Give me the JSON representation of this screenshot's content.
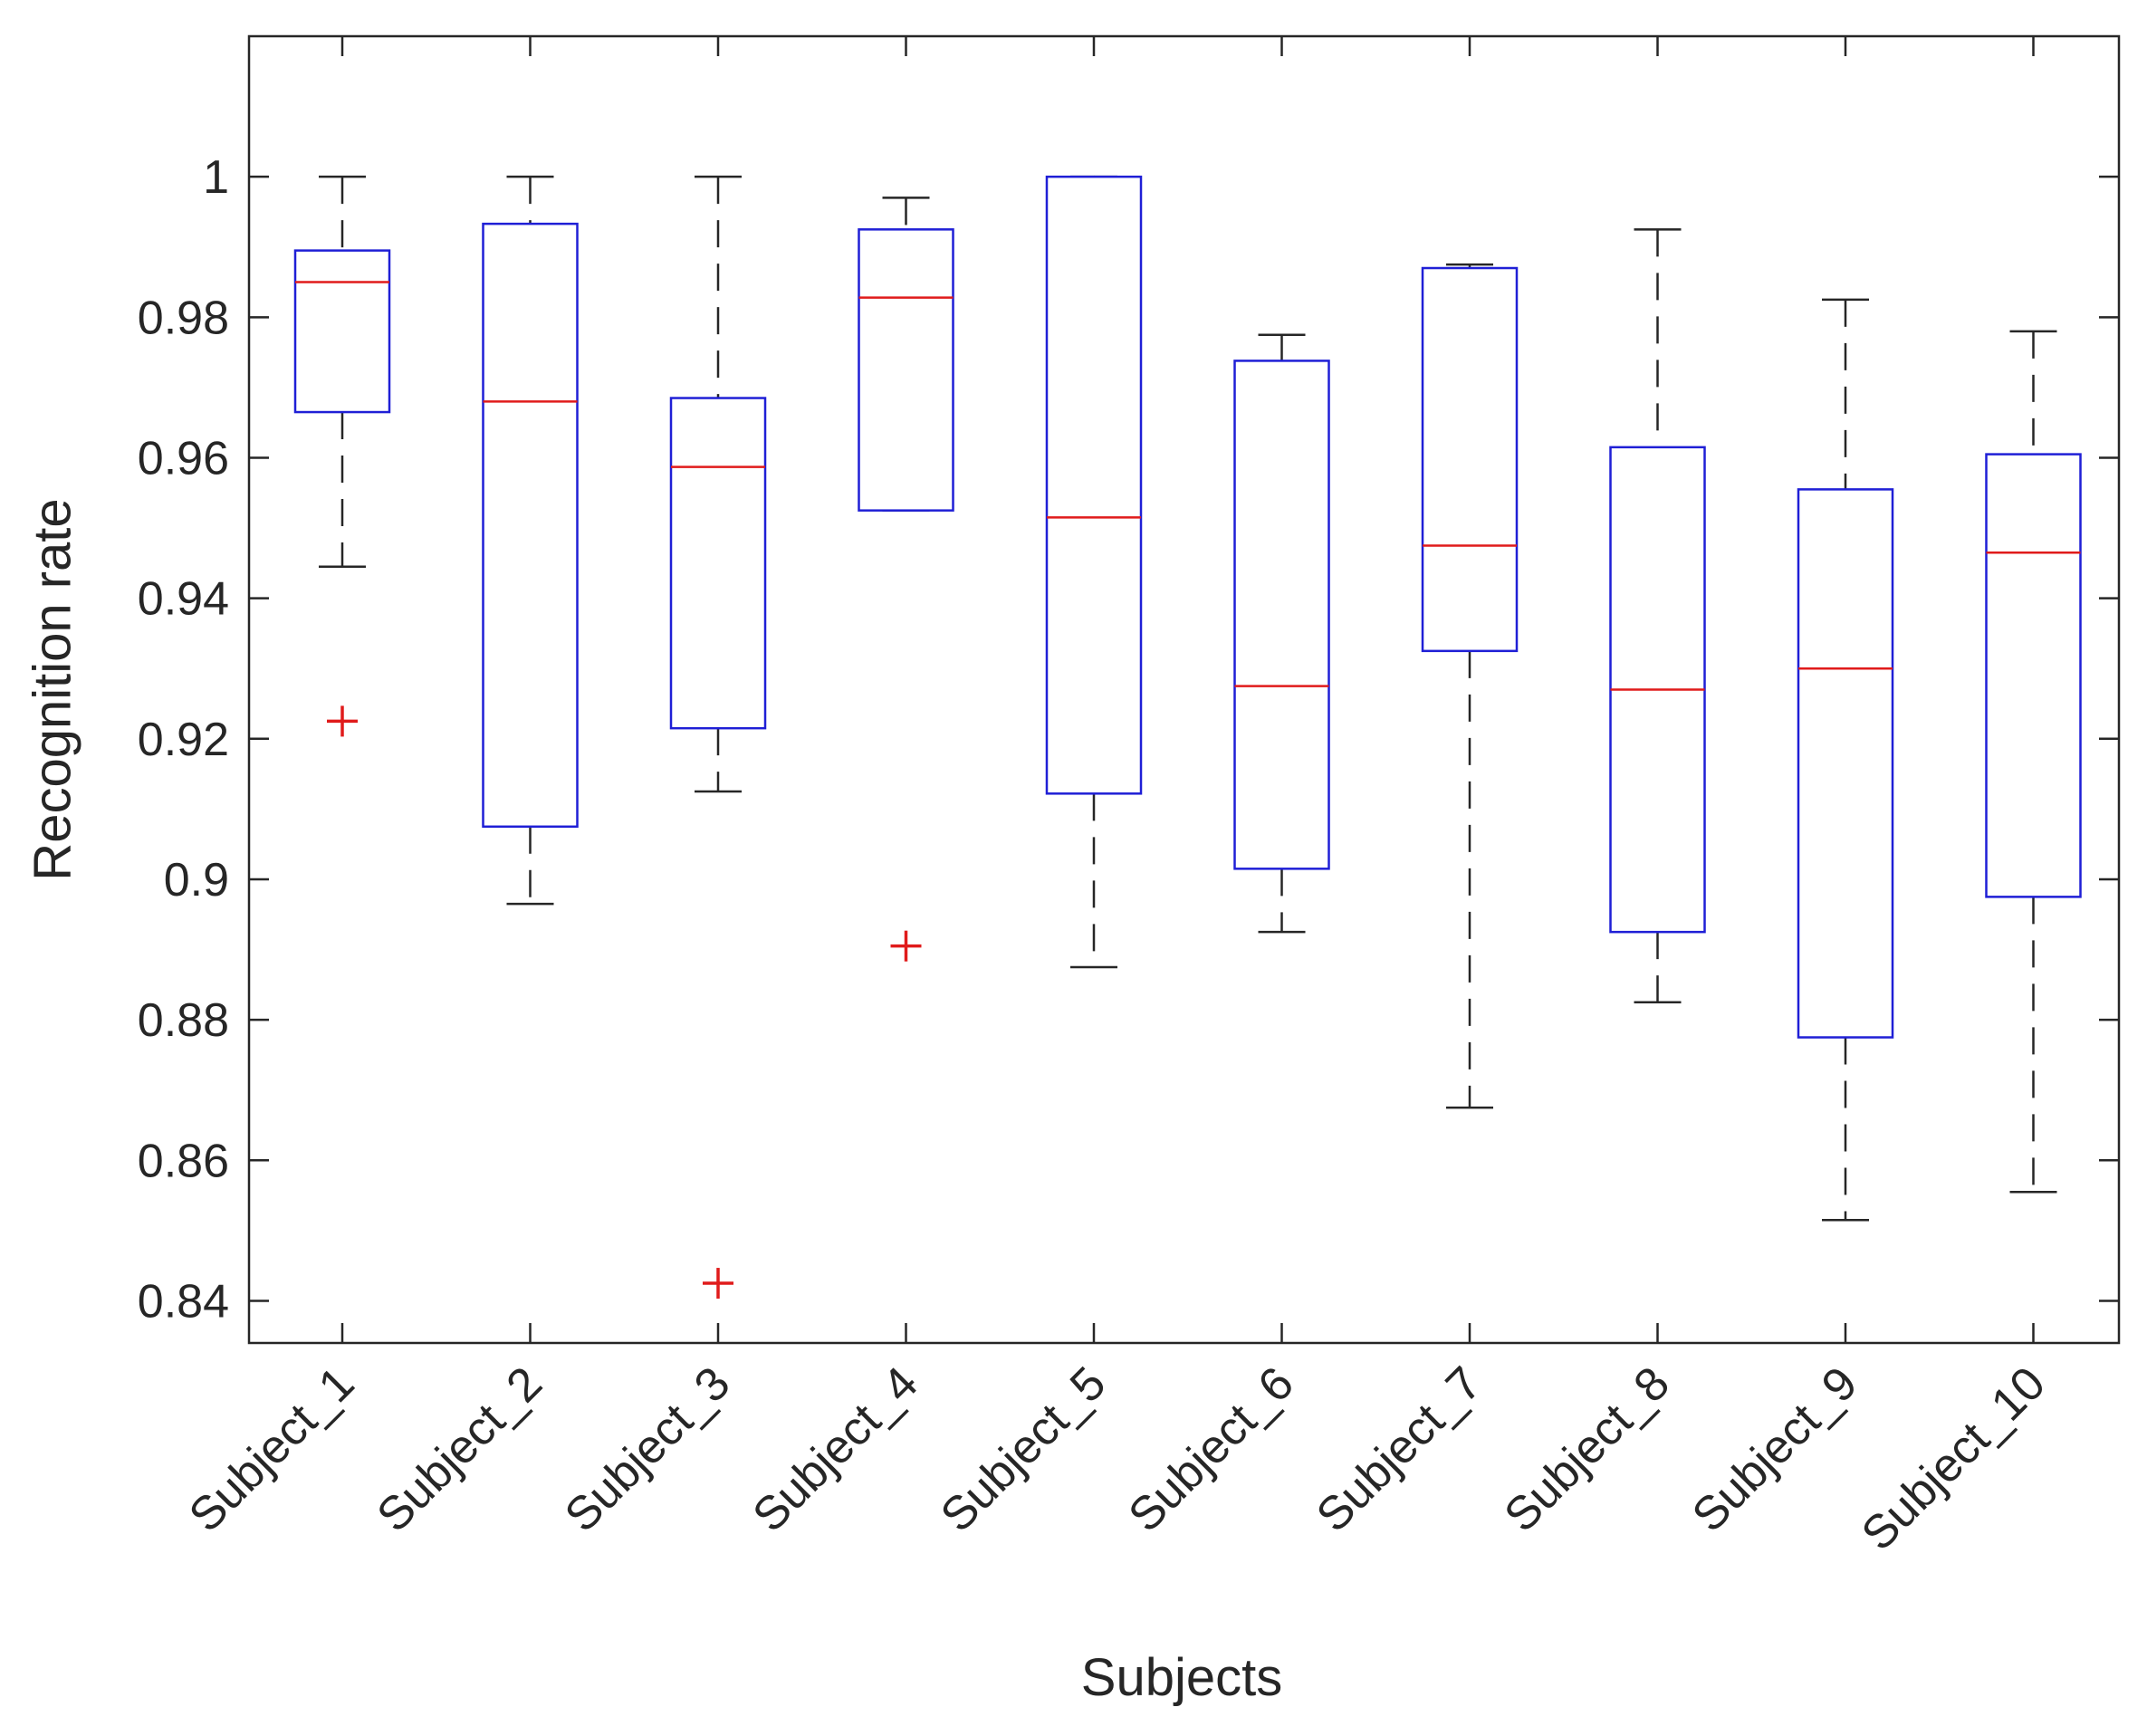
{
  "chart_data": {
    "type": "boxplot",
    "title": "",
    "xlabel": "Subjects",
    "ylabel": "Recognition rate",
    "ylim": [
      0.834,
      1.02
    ],
    "yticks": [
      0.84,
      0.86,
      0.88,
      0.9,
      0.92,
      0.94,
      0.96,
      0.98,
      1
    ],
    "ytick_labels": [
      "0.84",
      "0.86",
      "0.88",
      "0.9",
      "0.92",
      "0.94",
      "0.96",
      "0.98",
      "1"
    ],
    "grid": false,
    "colors": {
      "box": "#1f1fd6",
      "median": "#e01b1b",
      "whisker": "#262626",
      "outlier": "#e01b1b",
      "axis": "#262626"
    },
    "categories": [
      "Subject_1",
      "Subject_2",
      "Subject_3",
      "Subject_4",
      "Subject_5",
      "Subject_6",
      "Subject_7",
      "Subject_8",
      "Subject_9",
      "Subject_10"
    ],
    "boxes": [
      {
        "min": 0.9445,
        "q1": 0.9665,
        "median": 0.985,
        "q3": 0.9895,
        "max": 1.0,
        "outliers": [
          0.9225
        ]
      },
      {
        "min": 0.8965,
        "q1": 0.9075,
        "median": 0.968,
        "q3": 0.9933,
        "max": 1.0,
        "outliers": []
      },
      {
        "min": 0.9125,
        "q1": 0.9215,
        "median": 0.9587,
        "q3": 0.9685,
        "max": 1.0,
        "outliers": [
          0.8425
        ]
      },
      {
        "min": 0.9525,
        "q1": 0.9525,
        "median": 0.9828,
        "q3": 0.9925,
        "max": 0.997,
        "outliers": [
          0.8905
        ]
      },
      {
        "min": 0.8875,
        "q1": 0.9122,
        "median": 0.9515,
        "q3": 1.0,
        "max": 1.0,
        "outliers": []
      },
      {
        "min": 0.8925,
        "q1": 0.9015,
        "median": 0.9275,
        "q3": 0.9738,
        "max": 0.9775,
        "outliers": []
      },
      {
        "min": 0.8675,
        "q1": 0.9325,
        "median": 0.9475,
        "q3": 0.987,
        "max": 0.9875,
        "outliers": []
      },
      {
        "min": 0.8825,
        "q1": 0.8925,
        "median": 0.927,
        "q3": 0.9615,
        "max": 0.9925,
        "outliers": []
      },
      {
        "min": 0.8515,
        "q1": 0.8775,
        "median": 0.93,
        "q3": 0.9555,
        "max": 0.9825,
        "outliers": []
      },
      {
        "min": 0.8555,
        "q1": 0.8975,
        "median": 0.9465,
        "q3": 0.9605,
        "max": 0.978,
        "outliers": []
      }
    ]
  }
}
